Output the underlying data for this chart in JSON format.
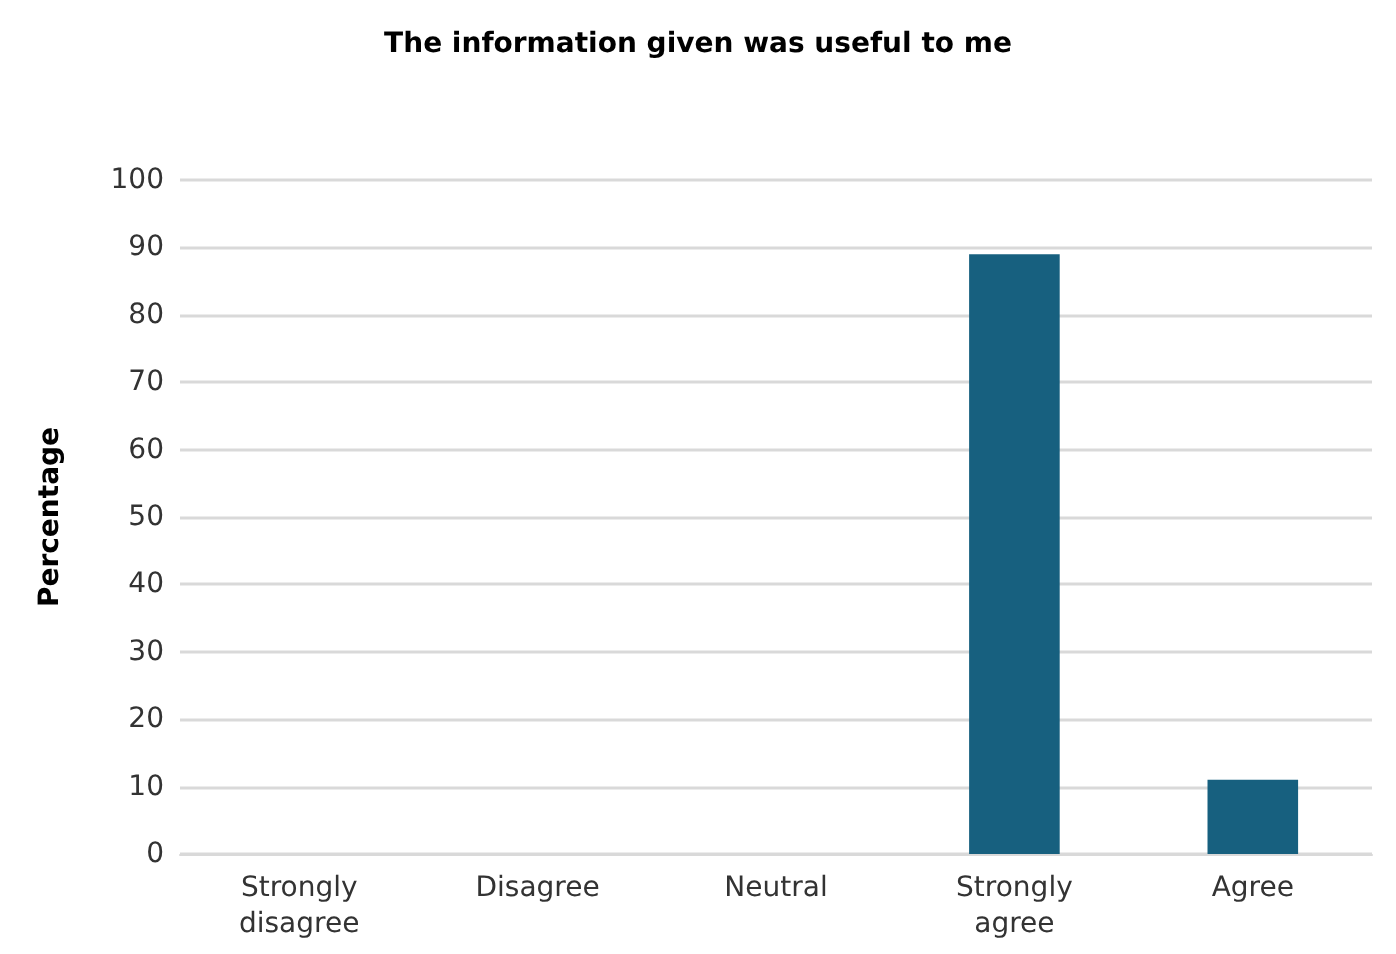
{
  "chart_data": {
    "type": "bar",
    "title": "The information given was useful to me",
    "ylabel": "Percentage",
    "categories": [
      "Strongly\ndisagree",
      "Disagree",
      "Neutral",
      "Strongly\nagree",
      "Agree"
    ],
    "values": [
      0,
      0,
      0,
      89,
      11
    ],
    "color": "#17607f",
    "ylim": [
      0,
      100
    ],
    "yticks": [
      0,
      10,
      20,
      30,
      40,
      50,
      60,
      70,
      80,
      90,
      100
    ],
    "grid": "y"
  }
}
